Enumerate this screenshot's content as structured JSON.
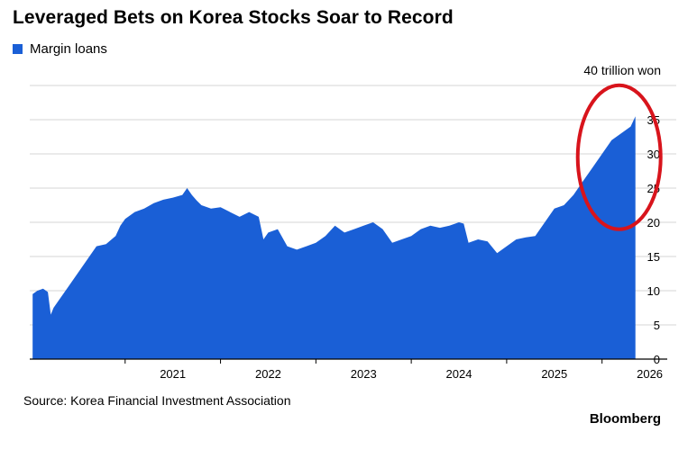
{
  "title": "Leveraged Bets on Korea Stocks Soar to Record",
  "legend": {
    "label": "Margin loans",
    "color": "#1a5fd6"
  },
  "unit_label": "40 trillion won",
  "source": "Source: Korea Financial Investment Association",
  "brand": "Bloomberg",
  "annotation": {
    "shape": "ellipse",
    "color": "#d8141c",
    "note_target": "record high"
  },
  "chart_data": {
    "type": "area",
    "title": "Leveraged Bets on Korea Stocks Soar to Record",
    "ylabel": "",
    "xlabel": "",
    "ylim": [
      0,
      40
    ],
    "y_ticks": [
      0,
      5,
      10,
      15,
      20,
      25,
      30,
      35,
      40
    ],
    "y_tick_labels": [
      "0",
      "5",
      "10",
      "15",
      "20",
      "25",
      "30",
      "35",
      "40 trillion won"
    ],
    "x_ticks": [
      "2021",
      "2022",
      "2023",
      "2024",
      "2025",
      "2026"
    ],
    "x_range": [
      2020.0,
      2026.4
    ],
    "grid": true,
    "legend_position": "top-left",
    "series": [
      {
        "name": "Margin loans",
        "color": "#1a5fd6",
        "x": [
          2020.03,
          2020.08,
          2020.14,
          2020.19,
          2020.22,
          2020.25,
          2020.3,
          2020.4,
          2020.5,
          2020.6,
          2020.7,
          2020.8,
          2020.9,
          2020.95,
          2021.0,
          2021.1,
          2021.2,
          2021.3,
          2021.4,
          2021.5,
          2021.6,
          2021.65,
          2021.7,
          2021.75,
          2021.8,
          2021.9,
          2022.0,
          2022.1,
          2022.2,
          2022.3,
          2022.4,
          2022.45,
          2022.5,
          2022.6,
          2022.7,
          2022.8,
          2022.9,
          2023.0,
          2023.1,
          2023.2,
          2023.3,
          2023.4,
          2023.5,
          2023.6,
          2023.7,
          2023.8,
          2023.9,
          2024.0,
          2024.1,
          2024.2,
          2024.3,
          2024.4,
          2024.5,
          2024.55,
          2024.6,
          2024.7,
          2024.8,
          2024.9,
          2025.0,
          2025.1,
          2025.2,
          2025.3,
          2025.4,
          2025.5,
          2025.6,
          2025.7,
          2025.8,
          2025.9,
          2026.0,
          2026.1,
          2026.2,
          2026.3,
          2026.35
        ],
        "values": [
          9.5,
          10.0,
          10.3,
          9.8,
          6.5,
          7.5,
          8.5,
          10.5,
          12.5,
          14.5,
          16.5,
          16.8,
          18.0,
          19.5,
          20.5,
          21.5,
          22.0,
          22.8,
          23.3,
          23.6,
          24.0,
          25.0,
          24.0,
          23.2,
          22.5,
          22.0,
          22.2,
          21.5,
          20.8,
          21.5,
          20.8,
          17.5,
          18.5,
          19.0,
          16.5,
          16.0,
          16.5,
          17.0,
          18.0,
          19.5,
          18.5,
          19.0,
          19.5,
          20.0,
          19.0,
          17.0,
          17.5,
          18.0,
          19.0,
          19.5,
          19.2,
          19.5,
          20.0,
          19.8,
          17.0,
          17.5,
          17.2,
          15.5,
          16.5,
          17.5,
          17.8,
          18.0,
          20.0,
          22.0,
          22.5,
          24.0,
          26.0,
          28.0,
          30.0,
          32.0,
          33.0,
          34.0,
          35.5
        ]
      }
    ]
  }
}
